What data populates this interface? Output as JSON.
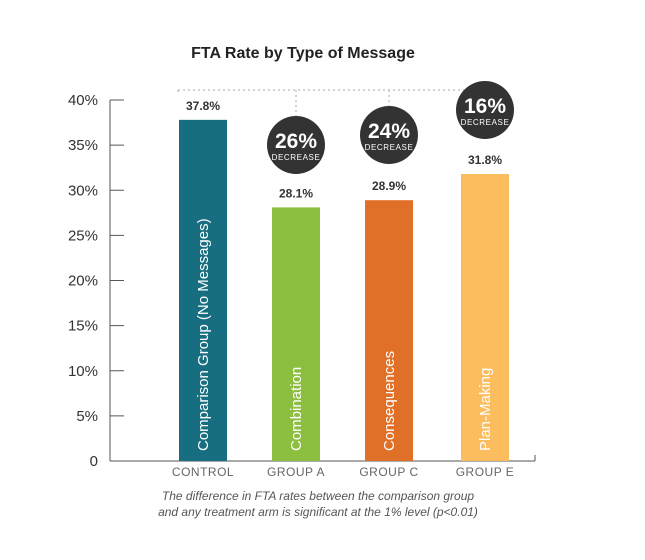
{
  "chart_data": {
    "type": "bar",
    "title": "FTA Rate by Type of Message",
    "categories": [
      "CONTROL",
      "GROUP A",
      "GROUP C",
      "GROUP E"
    ],
    "bar_labels": [
      "Comparison Group (No Messages)",
      "Combination",
      "Consequences",
      "Plan-Making"
    ],
    "values": [
      37.8,
      28.1,
      28.9,
      31.8
    ],
    "value_labels": [
      "37.8%",
      "28.1%",
      "28.9%",
      "31.8%"
    ],
    "colors": [
      "#166e80",
      "#8cbf3f",
      "#e07028",
      "#fbbd5e"
    ],
    "ylim": [
      0,
      40
    ],
    "y_ticks": [
      0,
      5,
      10,
      15,
      20,
      25,
      30,
      35,
      40
    ],
    "y_tick_labels": [
      "0",
      "5%",
      "10%",
      "15%",
      "20%",
      "25%",
      "30%",
      "35%",
      "40%"
    ],
    "xlabel": "",
    "ylabel": "",
    "grid": false,
    "badges": [
      {
        "category_index": 1,
        "percent": "26%",
        "label": "DECREASE"
      },
      {
        "category_index": 2,
        "percent": "24%",
        "label": "DECREASE"
      },
      {
        "category_index": 3,
        "percent": "16%",
        "label": "DECREASE"
      }
    ],
    "badge_color": "#333333",
    "footnote": [
      "The difference in FTA rates between the comparison group",
      "and any treatment arm is significant at the 1% level (p<0.01)"
    ]
  }
}
